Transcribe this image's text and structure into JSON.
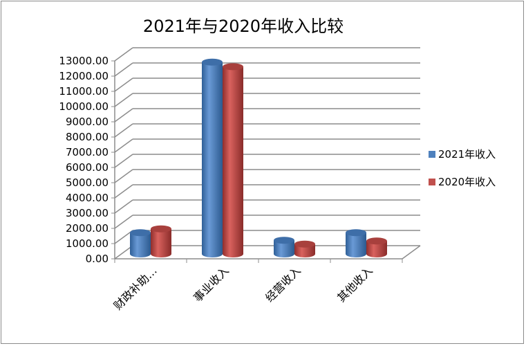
{
  "chart_data": {
    "type": "bar",
    "title": "2021年与2020年收入比较",
    "categories": [
      "财政补助…",
      "事业收入",
      "经营收入",
      "其他收入"
    ],
    "series": [
      {
        "name": "2021年收入",
        "values": [
          1400,
          12600,
          900,
          1400
        ],
        "color": "#4F81BD"
      },
      {
        "name": "2020年收入",
        "values": [
          1650,
          12300,
          650,
          850
        ],
        "color": "#C0504D"
      }
    ],
    "yticks": [
      "0.00",
      "1000.00",
      "2000.00",
      "3000.00",
      "4000.00",
      "5000.00",
      "6000.00",
      "7000.00",
      "8000.00",
      "9000.00",
      "10000.00",
      "11000.00",
      "12000.00",
      "13000.00"
    ],
    "ylim": [
      0,
      13000
    ],
    "grid": true,
    "legend": "right",
    "style": "3d-cylinder"
  }
}
